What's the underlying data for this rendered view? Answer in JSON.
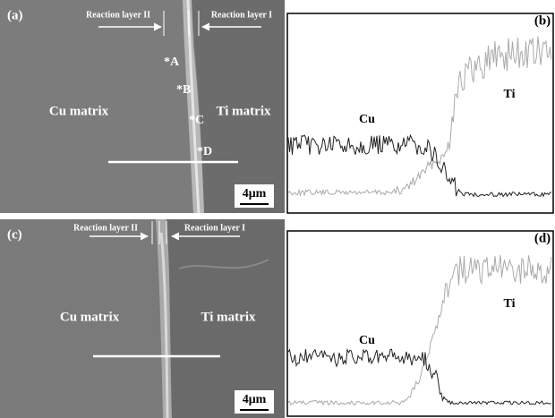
{
  "panels": [
    {
      "label": "(a)",
      "layer_left": "Reaction layer II",
      "layer_right": "Reaction layer I",
      "points": [
        "*A",
        "*B",
        "*C",
        "*D"
      ],
      "left_matrix": "Cu matrix",
      "right_matrix": "Ti matrix",
      "scale": "4μm"
    },
    {
      "label": "(b)",
      "curves": [
        "Cu",
        "Ti"
      ]
    },
    {
      "label": "(c)",
      "layer_left": "Reaction layer II",
      "layer_right": "Reaction layer I",
      "left_matrix": "Cu matrix",
      "right_matrix": "Ti matrix",
      "scale": "4μm"
    },
    {
      "label": "(d)",
      "curves": [
        "Cu",
        "Ti"
      ]
    }
  ]
}
